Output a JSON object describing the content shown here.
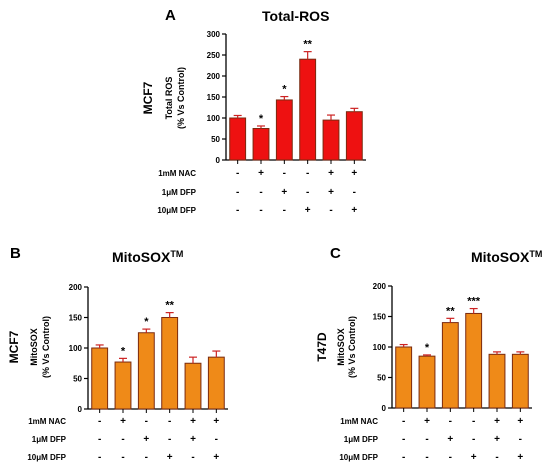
{
  "colors": {
    "red_bar": "#ee1111",
    "orange_bar": "#ef8a18",
    "bar_edge": "#7a2a10",
    "error": "#cc2222",
    "axis": "#000000"
  },
  "chart_data": [
    {
      "type": "bar",
      "panel_letter": "A",
      "title": "Total-ROS",
      "cell_line": "MCF7",
      "ylabel": [
        "Total ROS",
        "(% Vs Control)"
      ],
      "ylim": [
        0,
        300
      ],
      "yticks": [
        0,
        50,
        100,
        150,
        200,
        250,
        300
      ],
      "values": [
        100,
        75,
        143,
        240,
        95,
        115
      ],
      "errors": [
        6,
        6,
        8,
        18,
        12,
        8
      ],
      "significance": [
        "",
        "*",
        "*",
        "**",
        "",
        ""
      ],
      "treatments": [
        {
          "label": "1mM NAC",
          "signs": [
            "-",
            "+",
            "-",
            "-",
            "+",
            "+"
          ]
        },
        {
          "label": "1μM DFP",
          "signs": [
            "-",
            "-",
            "+",
            "-",
            "+",
            "-"
          ]
        },
        {
          "label": "10μM DFP",
          "signs": [
            "-",
            "-",
            "-",
            "+",
            "-",
            "+"
          ]
        }
      ],
      "bar_color": "#ee1111"
    },
    {
      "type": "bar",
      "panel_letter": "B",
      "title": "MitoSOX",
      "title_sup": "TM",
      "cell_line": "MCF7",
      "ylabel": [
        "MitoSOX",
        "(% Vs Control)"
      ],
      "ylim": [
        0,
        200
      ],
      "yticks": [
        0,
        50,
        100,
        150,
        200
      ],
      "values": [
        100,
        77,
        125,
        150,
        75,
        85
      ],
      "errors": [
        5,
        6,
        6,
        8,
        10,
        10
      ],
      "significance": [
        "",
        "*",
        "*",
        "**",
        "",
        ""
      ],
      "treatments": [
        {
          "label": "1mM NAC",
          "signs": [
            "-",
            "+",
            "-",
            "-",
            "+",
            "+"
          ]
        },
        {
          "label": "1μM DFP",
          "signs": [
            "-",
            "-",
            "+",
            "-",
            "+",
            "-"
          ]
        },
        {
          "label": "10μM DFP",
          "signs": [
            "-",
            "-",
            "-",
            "+",
            "-",
            "+"
          ]
        }
      ],
      "bar_color": "#ef8a18"
    },
    {
      "type": "bar",
      "panel_letter": "C",
      "title": "MitoSOX",
      "title_sup": "TM",
      "cell_line": "T47D",
      "ylabel": [
        "MitoSOX",
        "(% Vs Control)"
      ],
      "ylim": [
        0,
        200
      ],
      "yticks": [
        0,
        50,
        100,
        150,
        200
      ],
      "values": [
        100,
        85,
        140,
        155,
        88,
        88
      ],
      "errors": [
        4,
        2,
        7,
        8,
        4,
        4
      ],
      "significance": [
        "",
        "*",
        "**",
        "***",
        "",
        ""
      ],
      "treatments": [
        {
          "label": "1mM NAC",
          "signs": [
            "-",
            "+",
            "-",
            "-",
            "+",
            "+"
          ]
        },
        {
          "label": "1μM DFP",
          "signs": [
            "-",
            "-",
            "+",
            "-",
            "+",
            "-"
          ]
        },
        {
          "label": "10μM DFP",
          "signs": [
            "-",
            "-",
            "-",
            "+",
            "-",
            "+"
          ]
        }
      ],
      "bar_color": "#ef8a18"
    }
  ]
}
